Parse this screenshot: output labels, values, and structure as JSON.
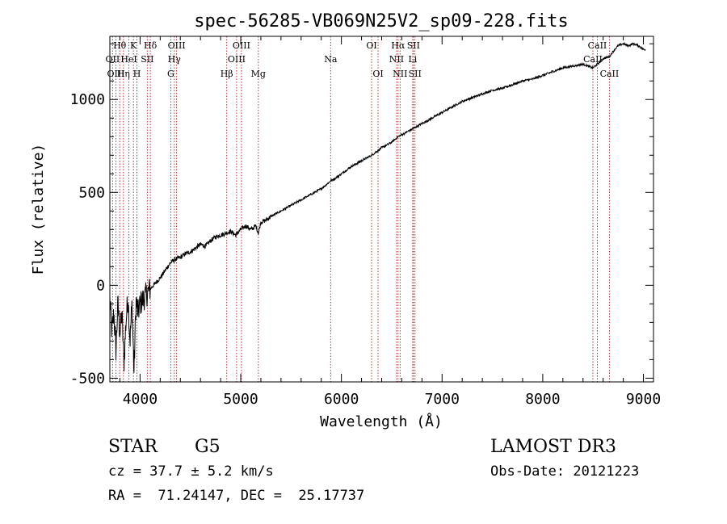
{
  "chart_data": {
    "type": "line",
    "title": "spec-56285-VB069N25V2_sp09-228.fits",
    "xlabel": "Wavelength (Å)",
    "ylabel": "Flux (relative)",
    "xlim": [
      3700,
      9100
    ],
    "ylim": [
      -520,
      1340
    ],
    "x_ticks": [
      4000,
      5000,
      6000,
      7000,
      8000,
      9000
    ],
    "y_ticks": [
      -500,
      0,
      500,
      1000
    ],
    "series": [
      {
        "name": "spectrum",
        "x": [
          3700,
          3720,
          3740,
          3760,
          3780,
          3800,
          3820,
          3840,
          3860,
          3880,
          3900,
          3920,
          3940,
          3960,
          3980,
          4000,
          4050,
          4100,
          4150,
          4200,
          4250,
          4300,
          4350,
          4400,
          4450,
          4500,
          4550,
          4600,
          4650,
          4700,
          4750,
          4800,
          4850,
          4900,
          4950,
          5000,
          5050,
          5100,
          5150,
          5175,
          5200,
          5250,
          5300,
          5400,
          5500,
          5600,
          5700,
          5800,
          5890,
          5950,
          6000,
          6100,
          6200,
          6300,
          6400,
          6500,
          6563,
          6600,
          6700,
          6800,
          6900,
          7000,
          7100,
          7200,
          7300,
          7400,
          7500,
          7600,
          7700,
          7800,
          7900,
          8000,
          8100,
          8200,
          8300,
          8400,
          8498,
          8542,
          8600,
          8662,
          8700,
          8750,
          8800,
          8850,
          8900,
          8950,
          9000
        ],
        "y": [
          -80,
          -250,
          -150,
          -350,
          -100,
          -260,
          -150,
          -420,
          -200,
          -60,
          -300,
          -100,
          -470,
          -80,
          -150,
          -100,
          -60,
          -20,
          10,
          40,
          80,
          120,
          140,
          150,
          170,
          180,
          200,
          220,
          210,
          240,
          260,
          270,
          280,
          290,
          270,
          300,
          320,
          300,
          320,
          280,
          340,
          350,
          370,
          400,
          430,
          460,
          490,
          520,
          560,
          580,
          600,
          640,
          670,
          700,
          740,
          770,
          800,
          810,
          840,
          870,
          900,
          930,
          960,
          990,
          1010,
          1030,
          1050,
          1060,
          1080,
          1100,
          1110,
          1130,
          1150,
          1170,
          1180,
          1190,
          1170,
          1190,
          1220,
          1230,
          1260,
          1290,
          1300,
          1290,
          1300,
          1290,
          1270
        ]
      }
    ],
    "lines": [
      {
        "label": "Hθ",
        "wave": 3798,
        "row": 0
      },
      {
        "label": "OII",
        "wave": 3727,
        "row": 1
      },
      {
        "label": "OIII",
        "wave": 3760,
        "row": 2
      },
      {
        "label": "Hη",
        "wave": 3835,
        "row": 2
      },
      {
        "label": "HeI",
        "wave": 3889,
        "row": 1
      },
      {
        "label": "K",
        "wave": 3934,
        "row": 0
      },
      {
        "label": "H",
        "wave": 3969,
        "row": 2
      },
      {
        "label": "SII",
        "wave": 4072,
        "row": 1
      },
      {
        "label": "Hδ",
        "wave": 4102,
        "row": 0
      },
      {
        "label": "G",
        "wave": 4305,
        "row": 2
      },
      {
        "label": "Hγ",
        "wave": 4340,
        "row": 1
      },
      {
        "label": "OIII",
        "wave": 4363,
        "row": 0
      },
      {
        "label": "Hβ",
        "wave": 4861,
        "row": 2
      },
      {
        "label": "OIII",
        "wave": 4959,
        "row": 1
      },
      {
        "label": "OIII",
        "wave": 5007,
        "row": 0
      },
      {
        "label": "Mg",
        "wave": 5175,
        "row": 2
      },
      {
        "label": "Na",
        "wave": 5893,
        "row": 1
      },
      {
        "label": "OI",
        "wave": 6300,
        "row": 0
      },
      {
        "label": "OI",
        "wave": 6364,
        "row": 2
      },
      {
        "label": "NII",
        "wave": 6548,
        "row": 1
      },
      {
        "label": "Hα",
        "wave": 6563,
        "row": 0
      },
      {
        "label": "NII",
        "wave": 6583,
        "row": 2
      },
      {
        "label": "Li",
        "wave": 6708,
        "row": 1
      },
      {
        "label": "SII",
        "wave": 6716,
        "row": 0
      },
      {
        "label": "SII",
        "wave": 6731,
        "row": 2
      },
      {
        "label": "CaII",
        "wave": 8498,
        "row": 1
      },
      {
        "label": "CaII",
        "wave": 8542,
        "row": 0
      },
      {
        "label": "CaII",
        "wave": 8662,
        "row": 2
      }
    ]
  },
  "info": {
    "object_class": "STAR",
    "subclass": "G5",
    "survey": "LAMOST DR3",
    "cz": "cz = 37.7 ± 5.2 km/s",
    "obs_date": "Obs-Date: 20121223",
    "coords": "RA =  71.24147, DEC =  25.17737"
  }
}
